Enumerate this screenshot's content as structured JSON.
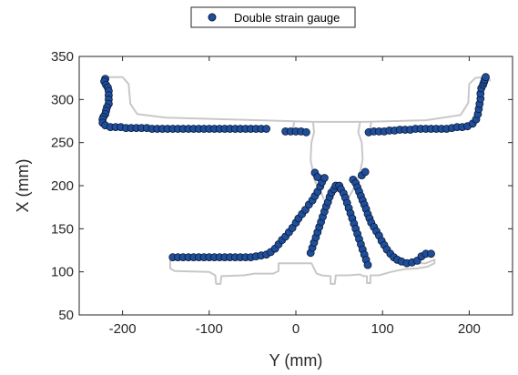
{
  "chart_data": {
    "type": "scatter",
    "title": "",
    "xlabel": "Y (mm)",
    "ylabel": "X (mm)",
    "xlim": [
      -250,
      250
    ],
    "ylim": [
      50,
      350
    ],
    "xticks": [
      -200,
      -100,
      0,
      100,
      200
    ],
    "yticks": [
      50,
      100,
      150,
      200,
      250,
      300,
      350
    ],
    "xtick_labels": [
      "-200",
      "-100",
      "0",
      "100",
      "200"
    ],
    "ytick_labels": [
      "50",
      "100",
      "150",
      "200",
      "250",
      "300",
      "350"
    ],
    "grid": false,
    "legend": {
      "position": "top",
      "entries": [
        "Double strain gauge"
      ]
    },
    "colors": {
      "marker_fill": "#1f4e9a",
      "marker_edge": "#0a1a3a",
      "outline": "#c8c8c8",
      "axis": "#262626"
    },
    "series": [
      {
        "name": "Double strain gauge",
        "points": [
          [
            -220,
            324
          ],
          [
            -221,
            321
          ],
          [
            -219,
            317
          ],
          [
            -217,
            314
          ],
          [
            -216,
            310
          ],
          [
            -216,
            305
          ],
          [
            -216,
            300
          ],
          [
            -216,
            295
          ],
          [
            -218,
            291
          ],
          [
            -219,
            287
          ],
          [
            -220,
            283
          ],
          [
            -222,
            280
          ],
          [
            -223,
            277
          ],
          [
            -223,
            273
          ],
          [
            -220,
            270
          ],
          [
            -214,
            268
          ],
          [
            -208,
            268
          ],
          [
            -202,
            268
          ],
          [
            -196,
            267
          ],
          [
            -190,
            267
          ],
          [
            -184,
            267
          ],
          [
            -178,
            267
          ],
          [
            -172,
            267
          ],
          [
            -166,
            266
          ],
          [
            -160,
            266
          ],
          [
            -154,
            266
          ],
          [
            -148,
            266
          ],
          [
            -142,
            266
          ],
          [
            -136,
            266
          ],
          [
            -130,
            266
          ],
          [
            -124,
            266
          ],
          [
            -118,
            266
          ],
          [
            -112,
            266
          ],
          [
            -106,
            266
          ],
          [
            -100,
            266
          ],
          [
            -94,
            266
          ],
          [
            -88,
            266
          ],
          [
            -82,
            266
          ],
          [
            -76,
            266
          ],
          [
            -70,
            266
          ],
          [
            -64,
            266
          ],
          [
            -58,
            266
          ],
          [
            -52,
            266
          ],
          [
            -46,
            266
          ],
          [
            -40,
            266
          ],
          [
            -34,
            266
          ],
          [
            -12,
            263
          ],
          [
            -6,
            263
          ],
          [
            0,
            263
          ],
          [
            6,
            263
          ],
          [
            12,
            262
          ],
          [
            84,
            262
          ],
          [
            90,
            263
          ],
          [
            96,
            263
          ],
          [
            102,
            263
          ],
          [
            108,
            264
          ],
          [
            114,
            264
          ],
          [
            120,
            265
          ],
          [
            126,
            265
          ],
          [
            132,
            265
          ],
          [
            138,
            266
          ],
          [
            144,
            266
          ],
          [
            150,
            266
          ],
          [
            156,
            266
          ],
          [
            162,
            266
          ],
          [
            168,
            266
          ],
          [
            174,
            266
          ],
          [
            180,
            267
          ],
          [
            186,
            268
          ],
          [
            192,
            268
          ],
          [
            198,
            269
          ],
          [
            204,
            272
          ],
          [
            208,
            277
          ],
          [
            210,
            283
          ],
          [
            211,
            289
          ],
          [
            212,
            295
          ],
          [
            213,
            301
          ],
          [
            213,
            307
          ],
          [
            214,
            313
          ],
          [
            216,
            317
          ],
          [
            217,
            320
          ],
          [
            218,
            323
          ],
          [
            219,
            326
          ],
          [
            -142,
            117
          ],
          [
            -136,
            117
          ],
          [
            -130,
            117
          ],
          [
            -124,
            117
          ],
          [
            -118,
            117
          ],
          [
            -112,
            117
          ],
          [
            -106,
            117
          ],
          [
            -100,
            117
          ],
          [
            -94,
            117
          ],
          [
            -88,
            117
          ],
          [
            -82,
            117
          ],
          [
            -76,
            117
          ],
          [
            -70,
            117
          ],
          [
            -64,
            117
          ],
          [
            -58,
            117
          ],
          [
            -52,
            117
          ],
          [
            -46,
            118
          ],
          [
            -40,
            119
          ],
          [
            -34,
            120
          ],
          [
            -29,
            123
          ],
          [
            -24,
            127
          ],
          [
            -20,
            132
          ],
          [
            -16,
            137
          ],
          [
            -12,
            141
          ],
          [
            -8,
            146
          ],
          [
            -4,
            151
          ],
          [
            0,
            157
          ],
          [
            3,
            162
          ],
          [
            7,
            167
          ],
          [
            11,
            172
          ],
          [
            15,
            178
          ],
          [
            19,
            183
          ],
          [
            22,
            188
          ],
          [
            25,
            193
          ],
          [
            28,
            199
          ],
          [
            30,
            204
          ],
          [
            33,
            209
          ],
          [
            22,
            215
          ],
          [
            25,
            210
          ],
          [
            17,
            122
          ],
          [
            19,
            128
          ],
          [
            21,
            134
          ],
          [
            23,
            140
          ],
          [
            25,
            146
          ],
          [
            27,
            152
          ],
          [
            29,
            158
          ],
          [
            31,
            164
          ],
          [
            33,
            170
          ],
          [
            35,
            176
          ],
          [
            37,
            181
          ],
          [
            39,
            187
          ],
          [
            41,
            192
          ],
          [
            44,
            196
          ],
          [
            46,
            200
          ],
          [
            50,
            200
          ],
          [
            52,
            196
          ],
          [
            55,
            191
          ],
          [
            57,
            186
          ],
          [
            59,
            180
          ],
          [
            61,
            174
          ],
          [
            63,
            168
          ],
          [
            65,
            162
          ],
          [
            67,
            156
          ],
          [
            69,
            150
          ],
          [
            71,
            144
          ],
          [
            73,
            138
          ],
          [
            75,
            132
          ],
          [
            77,
            126
          ],
          [
            79,
            120
          ],
          [
            81,
            114
          ],
          [
            83,
            108
          ],
          [
            66,
            207
          ],
          [
            69,
            203
          ],
          [
            71,
            198
          ],
          [
            73,
            193
          ],
          [
            75,
            188
          ],
          [
            77,
            183
          ],
          [
            79,
            178
          ],
          [
            81,
            173
          ],
          [
            83,
            167
          ],
          [
            85,
            162
          ],
          [
            87,
            157
          ],
          [
            90,
            152
          ],
          [
            93,
            147
          ],
          [
            96,
            142
          ],
          [
            99,
            136
          ],
          [
            102,
            131
          ],
          [
            105,
            126
          ],
          [
            109,
            121
          ],
          [
            113,
            117
          ],
          [
            117,
            114
          ],
          [
            122,
            112
          ],
          [
            128,
            110
          ],
          [
            134,
            111
          ],
          [
            140,
            113
          ],
          [
            145,
            118
          ],
          [
            150,
            121
          ],
          [
            156,
            121
          ],
          [
            76,
            212
          ],
          [
            80,
            216
          ]
        ]
      }
    ],
    "outline_paths": [
      {
        "name": "rail-top",
        "points": [
          [
            -215,
            326
          ],
          [
            -200,
            326
          ],
          [
            -193,
            318
          ],
          [
            -191,
            295
          ],
          [
            -183,
            283
          ],
          [
            -150,
            279
          ],
          [
            -80,
            277
          ],
          [
            -10,
            275
          ],
          [
            20,
            274
          ],
          [
            80,
            274
          ],
          [
            150,
            276
          ],
          [
            190,
            282
          ],
          [
            199,
            296
          ],
          [
            200,
            318
          ],
          [
            207,
            325
          ],
          [
            222,
            327
          ],
          [
            224,
            322
          ]
        ]
      },
      {
        "name": "web-left",
        "points": [
          [
            20,
            273
          ],
          [
            21,
            262
          ],
          [
            18,
            250
          ],
          [
            17,
            230
          ],
          [
            20,
            215
          ],
          [
            22,
            205
          ],
          [
            28,
            195
          ],
          [
            32,
            185
          ]
        ]
      },
      {
        "name": "web-right",
        "points": [
          [
            74,
            273
          ],
          [
            72,
            262
          ],
          [
            76,
            250
          ],
          [
            77,
            230
          ],
          [
            74,
            215
          ],
          [
            70,
            205
          ],
          [
            66,
            195
          ],
          [
            60,
            185
          ]
        ]
      },
      {
        "name": "notch-left",
        "points": [
          [
            -4,
            262
          ],
          [
            -2,
            274
          ]
        ]
      },
      {
        "name": "notch-right",
        "points": [
          [
            85,
            262
          ],
          [
            87,
            274
          ]
        ]
      },
      {
        "name": "rail-bottom",
        "points": [
          [
            -145,
            113
          ],
          [
            -145,
            104
          ],
          [
            -140,
            101
          ],
          [
            -100,
            100
          ],
          [
            -93,
            96
          ],
          [
            -92,
            86
          ],
          [
            -87,
            86
          ],
          [
            -86,
            95
          ],
          [
            -60,
            96
          ],
          [
            -48,
            98
          ],
          [
            -26,
            98
          ],
          [
            -20,
            101
          ],
          [
            -20,
            110
          ],
          [
            18,
            110
          ],
          [
            24,
            98
          ],
          [
            30,
            96
          ],
          [
            40,
            95
          ],
          [
            40,
            86
          ],
          [
            45,
            86
          ],
          [
            46,
            96
          ],
          [
            60,
            96
          ],
          [
            74,
            97
          ],
          [
            78,
            95
          ],
          [
            82,
            95
          ],
          [
            82,
            87
          ],
          [
            86,
            87
          ],
          [
            86,
            96
          ],
          [
            96,
            96
          ],
          [
            110,
            100
          ],
          [
            125,
            103
          ],
          [
            140,
            104
          ],
          [
            152,
            106
          ],
          [
            160,
            110
          ],
          [
            160,
            114
          ]
        ]
      },
      {
        "name": "rail-bottom-right-lip",
        "points": [
          [
            160,
            114
          ],
          [
            150,
            110
          ],
          [
            140,
            110
          ]
        ]
      }
    ]
  }
}
